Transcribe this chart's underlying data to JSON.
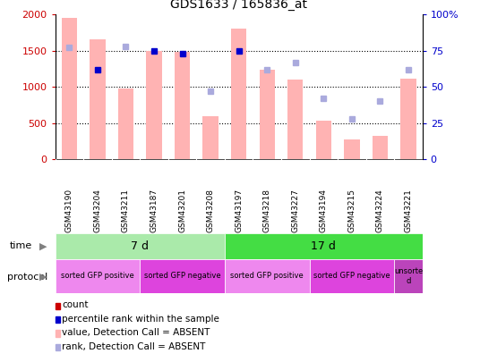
{
  "title": "GDS1633 / 165836_at",
  "samples": [
    "GSM43190",
    "GSM43204",
    "GSM43211",
    "GSM43187",
    "GSM43201",
    "GSM43208",
    "GSM43197",
    "GSM43218",
    "GSM43227",
    "GSM43194",
    "GSM43215",
    "GSM43224",
    "GSM43221"
  ],
  "bar_values": [
    1950,
    1660,
    975,
    1500,
    1480,
    590,
    1800,
    1240,
    1100,
    530,
    275,
    320,
    1110
  ],
  "bar_absent": [
    true,
    true,
    true,
    true,
    true,
    true,
    true,
    true,
    true,
    true,
    true,
    true,
    true
  ],
  "rank_values": [
    77,
    62,
    78,
    75,
    73,
    47,
    75,
    62,
    67,
    42,
    28,
    40,
    62
  ],
  "rank_absent": [
    true,
    false,
    true,
    false,
    false,
    true,
    false,
    true,
    true,
    true,
    true,
    true,
    true
  ],
  "ylim_left": [
    0,
    2000
  ],
  "ylim_right": [
    0,
    100
  ],
  "yticks_left": [
    0,
    500,
    1000,
    1500,
    2000
  ],
  "yticks_right": [
    0,
    25,
    50,
    75,
    100
  ],
  "yticklabels_right": [
    "0",
    "25",
    "50",
    "75",
    "100%"
  ],
  "yticklabels_left": [
    "0",
    "500",
    "1000",
    "1500",
    "2000"
  ],
  "bar_color_present": "#ff4444",
  "bar_color_absent": "#ffb3b3",
  "rank_color_present": "#0000cc",
  "rank_color_absent": "#aaaadd",
  "time_groups": [
    {
      "label": "7 d",
      "start": 0,
      "end": 6,
      "color": "#aaeaaa"
    },
    {
      "label": "17 d",
      "start": 6,
      "end": 13,
      "color": "#44dd44"
    }
  ],
  "protocol_groups": [
    {
      "label": "sorted GFP positive",
      "start": 0,
      "end": 3,
      "color": "#ee88ee"
    },
    {
      "label": "sorted GFP negative",
      "start": 3,
      "end": 6,
      "color": "#dd44dd"
    },
    {
      "label": "sorted GFP positive",
      "start": 6,
      "end": 9,
      "color": "#ee88ee"
    },
    {
      "label": "sorted GFP negative",
      "start": 9,
      "end": 12,
      "color": "#dd44dd"
    },
    {
      "label": "unsorte\nd",
      "start": 12,
      "end": 13,
      "color": "#bb44bb"
    }
  ],
  "legend_items": [
    {
      "label": "count",
      "color": "#cc0000"
    },
    {
      "label": "percentile rank within the sample",
      "color": "#0000cc"
    },
    {
      "label": "value, Detection Call = ABSENT",
      "color": "#ffb3b3"
    },
    {
      "label": "rank, Detection Call = ABSENT",
      "color": "#aaaadd"
    }
  ],
  "bg_color": "#ffffff",
  "tick_label_color_left": "#cc0000",
  "tick_label_color_right": "#0000cc",
  "grid_dotted_values": [
    500,
    1000,
    1500
  ]
}
